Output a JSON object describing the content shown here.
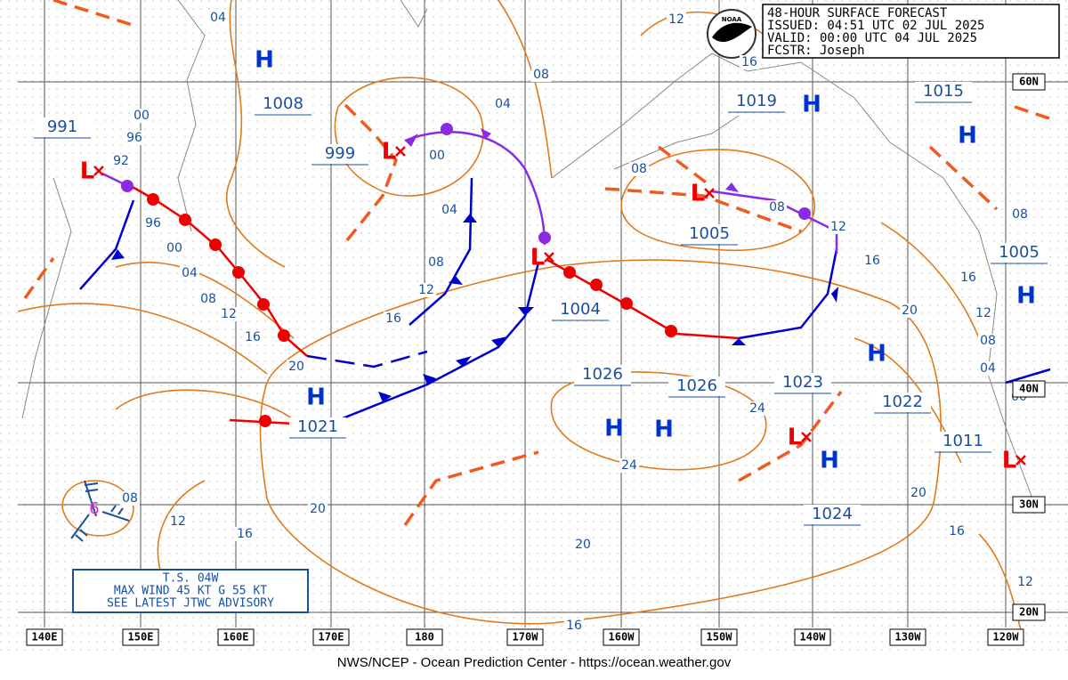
{
  "header": {
    "lines": [
      "48-HOUR SURFACE FORECAST",
      "ISSUED: 04:51 UTC 02 JUL 2025",
      "VALID:  00:00 UTC 04 JUL 2025",
      "FCSTR:   Joseph"
    ]
  },
  "logo": "NOAA",
  "pressure_labels": [
    "1008",
    "991",
    "999",
    "1019",
    "1015",
    "1005",
    "1005",
    "1004",
    "1026",
    "1026",
    "1023",
    "1022",
    "1021",
    "1011",
    "1024"
  ],
  "high_markers": [
    "H",
    "H",
    "H",
    "H",
    "H",
    "H",
    "H",
    "H",
    "H"
  ],
  "low_markers": [
    "L",
    "L",
    "L",
    "L",
    "L",
    "L"
  ],
  "isobar_labels": [
    "04",
    "00",
    "96",
    "92",
    "96",
    "00",
    "04",
    "08",
    "12",
    "16",
    "20",
    "16",
    "12",
    "08",
    "04",
    "00",
    "04",
    "08",
    "12",
    "16",
    "08",
    "08",
    "12",
    "16",
    "20",
    "12",
    "08",
    "04",
    "00",
    "08",
    "16",
    "24",
    "24",
    "20",
    "16",
    "20",
    "16",
    "12",
    "20",
    "16",
    "12",
    "08"
  ],
  "latitude_labels": [
    "60N",
    "40N",
    "30N",
    "20N"
  ],
  "longitude_labels": [
    "140E",
    "150E",
    "160E",
    "170E",
    "180",
    "170W",
    "160W",
    "150W",
    "140W",
    "130W",
    "120W"
  ],
  "storm": {
    "symbol": "6",
    "lines": [
      "T.S. 04W",
      "MAX WIND 45 KT G 55 KT",
      "SEE LATEST JTWC ADVISORY"
    ]
  },
  "footer": "NWS/NCEP - Ocean Prediction Center - https://ocean.weather.gov"
}
